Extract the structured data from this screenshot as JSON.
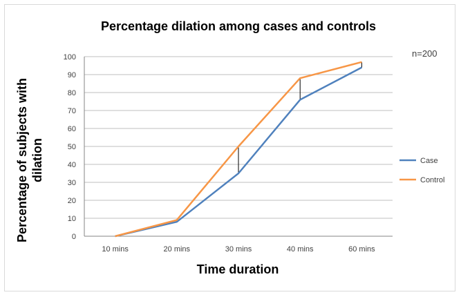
{
  "chart_data": {
    "type": "line",
    "title": "Percentage dilation among cases and controls",
    "xlabel": "Time duration",
    "ylabel_lines": [
      "Percentage of subjects with",
      "dilation"
    ],
    "annotation": "n=200",
    "categories": [
      "10 mins",
      "20 mins",
      "30 mins",
      "40 mins",
      "60 mins"
    ],
    "ylim": [
      0,
      100
    ],
    "yticks": [
      0,
      10,
      20,
      30,
      40,
      50,
      60,
      70,
      80,
      90,
      100
    ],
    "grid": true,
    "legend_position": "right",
    "series": [
      {
        "name": "Case",
        "color": "#4f81bd",
        "values": [
          0,
          8,
          35,
          76,
          94
        ]
      },
      {
        "name": "Control",
        "color": "#f79646",
        "values": [
          0,
          9,
          50,
          88,
          97
        ]
      }
    ],
    "difference_bars": [
      {
        "category": "20 mins"
      },
      {
        "category": "30 mins"
      },
      {
        "category": "40 mins"
      },
      {
        "category": "60 mins"
      }
    ]
  }
}
